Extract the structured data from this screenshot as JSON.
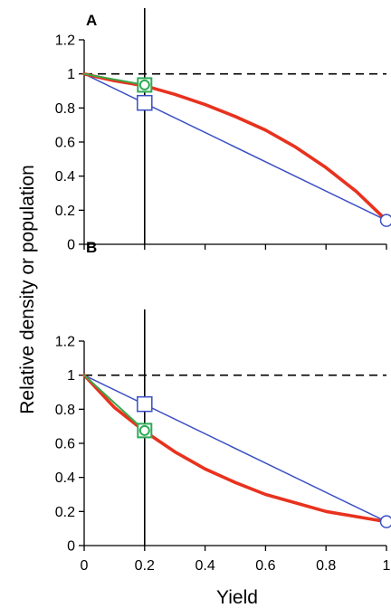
{
  "chart_data": {
    "type": "line",
    "xlabel": "Yield",
    "ylabel": "Relative density or population",
    "xlim": [
      0,
      1
    ],
    "ylim": [
      0,
      1.2
    ],
    "x_ticks": [
      "0",
      "0.2",
      "0.4",
      "0.6",
      "0.8",
      "1"
    ],
    "y_ticks": [
      "0",
      "0.2",
      "0.4",
      "0.6",
      "0.8",
      "1",
      "1.2"
    ],
    "reference_line_y": 1,
    "vertical_line_x": 0.2,
    "colors": {
      "red_curve": "#e8321e",
      "blue_line": "#3a4fc4",
      "green_segment": "#3aa84a",
      "square_marker": "#3a4fc4",
      "circle_marker": "#3a4fc4",
      "green_marker": "#2eaa55"
    },
    "panels": [
      {
        "label": "A",
        "series": [
          {
            "color_key": "red_curve",
            "x": [
              0,
              0.1,
              0.2,
              0.3,
              0.4,
              0.5,
              0.6,
              0.7,
              0.8,
              0.9,
              1.0
            ],
            "y": [
              1.0,
              0.96,
              0.93,
              0.88,
              0.82,
              0.75,
              0.67,
              0.57,
              0.45,
              0.31,
              0.14
            ]
          },
          {
            "color_key": "blue_line",
            "x": [
              0,
              1
            ],
            "y": [
              1.0,
              0.14
            ]
          },
          {
            "color_key": "green_segment",
            "x": [
              0,
              0.2
            ],
            "y": [
              1.0,
              0.935
            ]
          }
        ],
        "markers": [
          {
            "shape": "square",
            "x": 0.2,
            "y": 0.83
          },
          {
            "shape": "circle",
            "x": 1.0,
            "y": 0.14
          },
          {
            "shape": "green-square-circle",
            "x": 0.2,
            "y": 0.935
          }
        ]
      },
      {
        "label": "B",
        "series": [
          {
            "color_key": "red_curve",
            "x": [
              0,
              0.1,
              0.2,
              0.3,
              0.4,
              0.5,
              0.6,
              0.7,
              0.8,
              0.9,
              1.0
            ],
            "y": [
              1.0,
              0.81,
              0.67,
              0.55,
              0.45,
              0.37,
              0.3,
              0.25,
              0.2,
              0.17,
              0.14
            ]
          },
          {
            "color_key": "blue_line",
            "x": [
              0,
              1
            ],
            "y": [
              1.0,
              0.14
            ]
          },
          {
            "color_key": "green_segment",
            "x": [
              0,
              0.2
            ],
            "y": [
              1.0,
              0.675
            ]
          }
        ],
        "markers": [
          {
            "shape": "square",
            "x": 0.2,
            "y": 0.83
          },
          {
            "shape": "circle",
            "x": 1.0,
            "y": 0.14
          },
          {
            "shape": "green-square-circle",
            "x": 0.2,
            "y": 0.675
          }
        ]
      }
    ]
  }
}
